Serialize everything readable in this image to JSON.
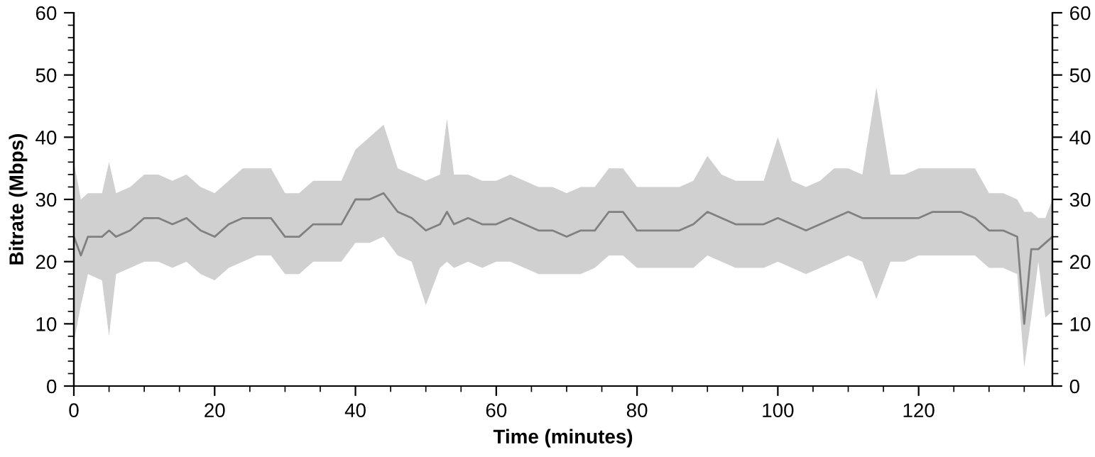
{
  "chart_data": {
    "type": "line",
    "xlabel": "Time (minutes)",
    "ylabel": "Bitrate (Mbps)",
    "x": [
      0,
      1,
      2,
      4,
      5,
      6,
      8,
      10,
      12,
      14,
      16,
      18,
      20,
      22,
      24,
      26,
      28,
      30,
      32,
      34,
      36,
      38,
      40,
      42,
      44,
      46,
      48,
      50,
      52,
      53,
      54,
      56,
      58,
      60,
      62,
      64,
      66,
      68,
      70,
      72,
      74,
      76,
      78,
      80,
      82,
      84,
      86,
      88,
      90,
      92,
      94,
      96,
      98,
      100,
      102,
      104,
      106,
      108,
      110,
      112,
      114,
      116,
      118,
      120,
      122,
      124,
      126,
      128,
      130,
      132,
      134,
      135,
      136,
      137,
      138,
      139
    ],
    "series": [
      {
        "color": "#808080",
        "values": [
          24,
          21,
          24,
          24,
          25,
          24,
          25,
          27,
          27,
          26,
          27,
          25,
          24,
          26,
          27,
          27,
          27,
          24,
          24,
          26,
          26,
          26,
          30,
          30,
          31,
          28,
          27,
          25,
          26,
          28,
          26,
          27,
          26,
          26,
          27,
          26,
          25,
          25,
          24,
          25,
          25,
          28,
          28,
          25,
          25,
          25,
          25,
          26,
          28,
          27,
          26,
          26,
          26,
          27,
          26,
          25,
          26,
          27,
          28,
          27,
          27,
          27,
          27,
          27,
          28,
          28,
          28,
          27,
          25,
          25,
          24,
          10,
          22,
          22,
          23,
          24
        ],
        "lower": [
          7,
          13,
          18,
          17,
          8,
          18,
          19,
          20,
          20,
          19,
          20,
          18,
          17,
          19,
          20,
          21,
          21,
          18,
          18,
          20,
          20,
          20,
          23,
          23,
          24,
          21,
          20,
          13,
          19,
          20,
          19,
          20,
          19,
          20,
          20,
          19,
          18,
          18,
          18,
          18,
          19,
          21,
          21,
          19,
          19,
          19,
          19,
          19,
          21,
          20,
          19,
          19,
          19,
          20,
          19,
          18,
          19,
          20,
          21,
          20,
          14,
          20,
          20,
          21,
          21,
          21,
          21,
          21,
          19,
          19,
          18,
          3,
          11,
          20,
          11,
          12
        ],
        "upper": [
          36,
          30,
          31,
          31,
          36,
          31,
          32,
          34,
          34,
          33,
          34,
          32,
          31,
          33,
          35,
          35,
          35,
          31,
          31,
          33,
          33,
          33,
          38,
          40,
          42,
          35,
          34,
          33,
          34,
          43,
          34,
          34,
          33,
          33,
          34,
          33,
          32,
          32,
          31,
          32,
          32,
          35,
          35,
          32,
          32,
          32,
          32,
          33,
          37,
          34,
          33,
          33,
          33,
          40,
          33,
          32,
          33,
          35,
          35,
          34,
          48,
          34,
          34,
          35,
          35,
          35,
          35,
          35,
          31,
          31,
          30,
          28,
          28,
          27,
          27,
          30
        ]
      }
    ],
    "xlim": [
      0,
      139
    ],
    "xticks": [
      0,
      20,
      40,
      60,
      80,
      100,
      120
    ],
    "ylim": [
      0,
      60
    ],
    "yticks": [
      0,
      10,
      20,
      30,
      40,
      50,
      60
    ],
    "y2lim": [
      0,
      60
    ],
    "y2ticks": [
      0,
      10,
      20,
      30,
      40,
      50,
      60
    ],
    "grid": false,
    "legend": false
  }
}
